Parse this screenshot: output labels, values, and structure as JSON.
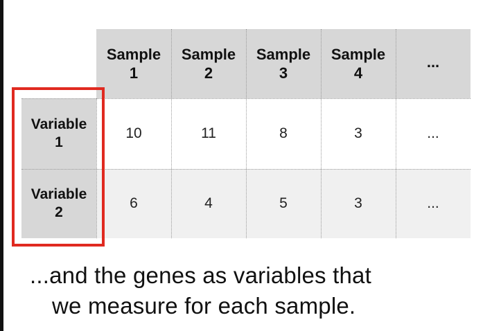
{
  "table": {
    "columns": [
      "Sample 1",
      "Sample 2",
      "Sample 3",
      "Sample 4",
      "..."
    ],
    "column_lines": [
      [
        "Sample",
        "1"
      ],
      [
        "Sample",
        "2"
      ],
      [
        "Sample",
        "3"
      ],
      [
        "Sample",
        "4"
      ],
      [
        "...",
        ""
      ]
    ],
    "rows": [
      {
        "label_lines": [
          "Variable",
          "1"
        ],
        "values": [
          "10",
          "11",
          "8",
          "3",
          "..."
        ]
      },
      {
        "label_lines": [
          "Variable",
          "2"
        ],
        "values": [
          "6",
          "4",
          "5",
          "3",
          "..."
        ]
      }
    ]
  },
  "highlight": {
    "color": "#e02a20"
  },
  "caption": {
    "line1": "...and the genes as variables that",
    "line2": "we measure for each sample."
  }
}
